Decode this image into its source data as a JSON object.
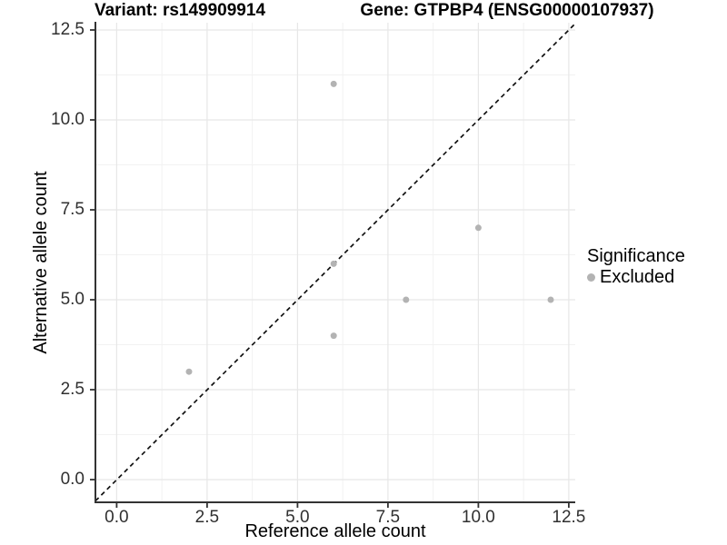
{
  "titles": {
    "left": "Variant: rs149909914",
    "right": "Gene: GTPBP4 (ENSG00000107937)"
  },
  "axes": {
    "x_title": "Reference allele count",
    "y_title": "Alternative allele count"
  },
  "legend": {
    "title": "Significance",
    "items": [
      {
        "label": "Excluded",
        "color": "#b3b3b3"
      }
    ]
  },
  "colors": {
    "background": "#ffffff",
    "grid_major": "#e7e7e7",
    "grid_minor": "#f2f2f2",
    "axis_line": "#333333",
    "tick_mark": "#333333",
    "point": "#b3b3b3",
    "reference_line": "#111111"
  },
  "chart_data": {
    "type": "scatter",
    "title_left": "Variant: rs149909914",
    "title_right": "Gene: GTPBP4 (ENSG00000107937)",
    "xlabel": "Reference allele count",
    "ylabel": "Alternative allele count",
    "xlim": [
      -0.6,
      12.7
    ],
    "ylim": [
      -0.65,
      12.7
    ],
    "x_ticks": [
      0,
      2.5,
      5,
      7.5,
      10,
      12.5
    ],
    "y_ticks": [
      0,
      2.5,
      5,
      7.5,
      10,
      12.5
    ],
    "x_tick_labels": [
      "0.0",
      "2.5",
      "5.0",
      "7.5",
      "10.0",
      "12.5"
    ],
    "y_tick_labels": [
      "0.0",
      "2.5",
      "5.0",
      "7.5",
      "10.0",
      "12.5"
    ],
    "grid": "major+minor",
    "legend_position": "right",
    "series": [
      {
        "name": "Excluded",
        "color": "#b3b3b3",
        "points": [
          [
            2,
            3
          ],
          [
            6,
            4
          ],
          [
            6,
            6
          ],
          [
            6,
            11
          ],
          [
            8,
            5
          ],
          [
            10,
            7
          ],
          [
            12,
            5
          ]
        ]
      }
    ],
    "reference_line": {
      "type": "identity",
      "slope": 1,
      "intercept": 0,
      "style": "dashed"
    }
  }
}
